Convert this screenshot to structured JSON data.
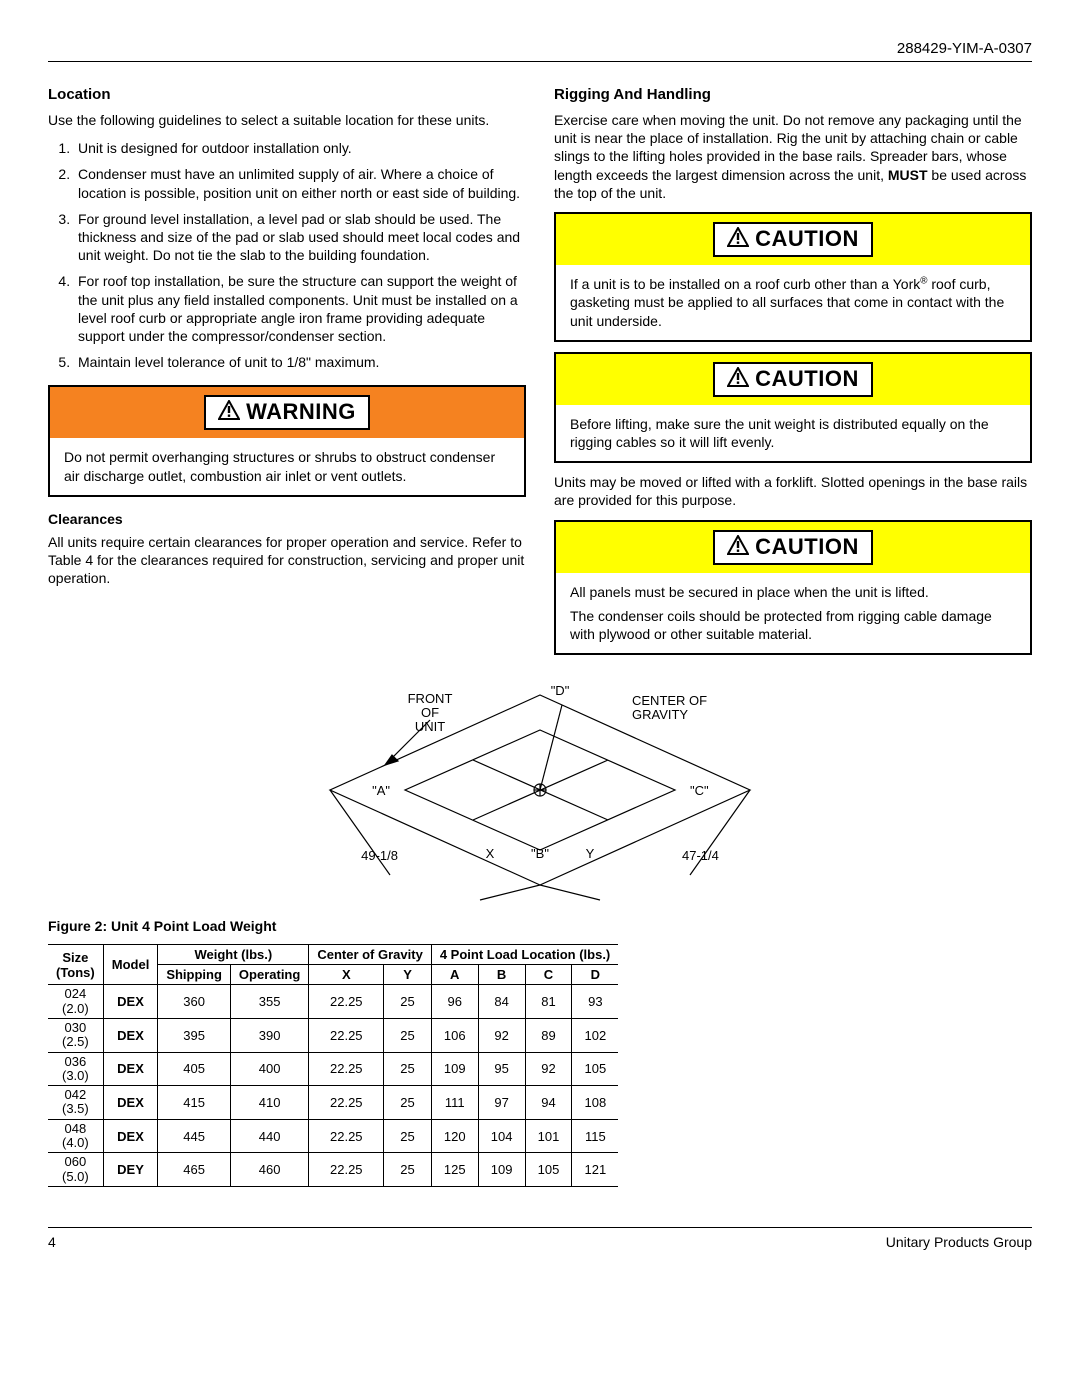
{
  "header": {
    "doc_id": "288429-YIM-A-0307"
  },
  "left": {
    "location_heading": "Location",
    "location_intro": "Use the following guidelines to select a suitable location for these units.",
    "guidelines": [
      "Unit is designed for outdoor installation only.",
      "Condenser must have an unlimited supply of air. Where a choice of location is possible, position unit on either north or east side of building.",
      "For ground level installation, a level pad or slab should be used. The thickness and size of the pad or slab used should meet local codes and unit weight. Do not tie the slab to the building foundation.",
      "For roof top installation, be sure the structure can support the weight of the unit plus any field installed components. Unit must be installed on a level roof curb or appropriate angle iron frame providing adequate support under the compressor/condenser section.",
      "Maintain level tolerance of unit to 1/8\" maximum."
    ],
    "warning": {
      "label": "WARNING",
      "text": "Do not permit overhanging structures or shrubs to obstruct condenser air discharge outlet, combustion air inlet or vent outlets."
    },
    "clearances_heading": "Clearances",
    "clearances_text": "All units require certain clearances for proper operation and service. Refer to Table 4 for the clearances required for construction, servicing and proper unit operation."
  },
  "right": {
    "rigging_heading": "Rigging And Handling",
    "rigging_intro_a": "Exercise care when moving the unit. Do not remove any packaging until the unit is near the place of installation. Rig the unit by attaching chain or cable slings to the lifting holes provided in the base rails. Spreader bars, whose length exceeds the largest dimension across the unit, ",
    "rigging_intro_b": "MUST",
    "rigging_intro_c": " be used across the top of the unit.",
    "caution1": {
      "label": "CAUTION",
      "text_a": "If a unit is to be installed on a roof curb other than a York",
      "text_b": " roof curb, gasketing must be applied to all surfaces that come in contact with the unit underside."
    },
    "caution2": {
      "label": "CAUTION",
      "text": "Before lifting, make sure the unit weight is distributed equally on the rigging cables so it will lift evenly."
    },
    "forklift_text": "Units may be moved or lifted with a forklift. Slotted openings in the base rails are provided for this purpose.",
    "caution3": {
      "label": "CAUTION",
      "text1": "All panels must be secured in place when the unit is lifted.",
      "text2": "The condenser coils should be protected from rigging cable damage with plywood or other suitable material."
    }
  },
  "figure": {
    "caption": "Figure 2:  Unit 4 Point Load Weight",
    "labels": {
      "front": "FRONT OF UNIT",
      "cog": "CENTER OF GRAVITY",
      "a": "\"A\"",
      "b": "\"B\"",
      "c": "\"C\"",
      "d": "\"D\"",
      "x": "X",
      "y": "Y",
      "dim_left": "49-1/8",
      "dim_right": "47-1/4"
    },
    "colors": {
      "stroke": "#000000",
      "text": "#000000"
    }
  },
  "table": {
    "headers": {
      "size": "Size (Tons)",
      "model": "Model",
      "weight": "Weight (lbs.)",
      "shipping": "Shipping",
      "operating": "Operating",
      "cog": "Center of Gravity",
      "x": "X",
      "y": "Y",
      "load": "4 Point Load Location (lbs.)",
      "a": "A",
      "b": "B",
      "c": "C",
      "d": "D"
    },
    "rows": [
      {
        "size_top": "024",
        "size_bot": "(2.0)",
        "model": "DEX",
        "shipping": "360",
        "operating": "355",
        "x": "22.25",
        "y": "25",
        "a": "96",
        "b": "84",
        "c": "81",
        "d": "93"
      },
      {
        "size_top": "030",
        "size_bot": "(2.5)",
        "model": "DEX",
        "shipping": "395",
        "operating": "390",
        "x": "22.25",
        "y": "25",
        "a": "106",
        "b": "92",
        "c": "89",
        "d": "102"
      },
      {
        "size_top": "036",
        "size_bot": "(3.0)",
        "model": "DEX",
        "shipping": "405",
        "operating": "400",
        "x": "22.25",
        "y": "25",
        "a": "109",
        "b": "95",
        "c": "92",
        "d": "105"
      },
      {
        "size_top": "042",
        "size_bot": "(3.5)",
        "model": "DEX",
        "shipping": "415",
        "operating": "410",
        "x": "22.25",
        "y": "25",
        "a": "111",
        "b": "97",
        "c": "94",
        "d": "108"
      },
      {
        "size_top": "048",
        "size_bot": "(4.0)",
        "model": "DEX",
        "shipping": "445",
        "operating": "440",
        "x": "22.25",
        "y": "25",
        "a": "120",
        "b": "104",
        "c": "101",
        "d": "115"
      },
      {
        "size_top": "060",
        "size_bot": "(5.0)",
        "model": "DEY",
        "shipping": "465",
        "operating": "460",
        "x": "22.25",
        "y": "25",
        "a": "125",
        "b": "109",
        "c": "105",
        "d": "121"
      }
    ]
  },
  "footer": {
    "page": "4",
    "org": "Unitary Products Group"
  }
}
